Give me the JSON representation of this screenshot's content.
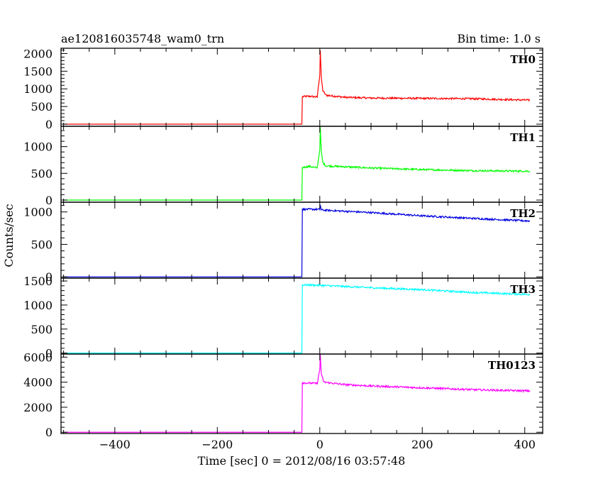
{
  "header": {
    "observation_id": "ae120816035748_wam0_trn",
    "bin_time": "Bin time: 1.0 s"
  },
  "axes": {
    "xlabel": "Time [sec] 0 = 2012/08/16 03:57:48",
    "ylabel": "Counts/sec"
  },
  "chart_data": {
    "type": "line",
    "title": "ae120816035748_wam0_trn",
    "subtitle": "Bin time: 1.0 s",
    "xlabel": "Time [sec] 0 = 2012/08/16 03:57:48",
    "ylabel": "Counts/sec",
    "xlim": [
      -505,
      435
    ],
    "x_ticks": [
      -400,
      -200,
      0,
      200,
      400
    ],
    "x_data_range": [
      -500,
      410
    ],
    "grid": false,
    "legend": "none",
    "panels": [
      {
        "name": "TH0",
        "color": "#ff0000",
        "ylim": [
          -60,
          2150
        ],
        "y_ticks": [
          0,
          500,
          1000,
          1500,
          2000
        ],
        "y_tick_labels": [
          "0",
          "500",
          "1000",
          "1500",
          "2000"
        ],
        "series": [
          {
            "x": -500,
            "y": 0
          },
          {
            "x": -35,
            "y": 0
          },
          {
            "x": -34,
            "y": 780
          },
          {
            "x": -20,
            "y": 790
          },
          {
            "x": -5,
            "y": 770
          },
          {
            "x": 0,
            "y": 1400
          },
          {
            "x": 1,
            "y": 2100
          },
          {
            "x": 3,
            "y": 1300
          },
          {
            "x": 6,
            "y": 950
          },
          {
            "x": 12,
            "y": 820
          },
          {
            "x": 50,
            "y": 760
          },
          {
            "x": 100,
            "y": 740
          },
          {
            "x": 200,
            "y": 730
          },
          {
            "x": 300,
            "y": 720
          },
          {
            "x": 410,
            "y": 680
          }
        ]
      },
      {
        "name": "TH1",
        "color": "#00ff00",
        "ylim": [
          -40,
          1380
        ],
        "y_ticks": [
          0,
          500,
          1000
        ],
        "y_tick_labels": [
          "0",
          "500",
          "1000"
        ],
        "series": [
          {
            "x": -500,
            "y": 0
          },
          {
            "x": -35,
            "y": 0
          },
          {
            "x": -34,
            "y": 610
          },
          {
            "x": -20,
            "y": 630
          },
          {
            "x": -5,
            "y": 600
          },
          {
            "x": 0,
            "y": 950
          },
          {
            "x": 1,
            "y": 1350
          },
          {
            "x": 3,
            "y": 900
          },
          {
            "x": 6,
            "y": 700
          },
          {
            "x": 12,
            "y": 640
          },
          {
            "x": 100,
            "y": 600
          },
          {
            "x": 200,
            "y": 570
          },
          {
            "x": 300,
            "y": 550
          },
          {
            "x": 410,
            "y": 540
          }
        ]
      },
      {
        "name": "TH2",
        "color": "#0000e0",
        "ylim": [
          -20,
          1150
        ],
        "y_ticks": [
          0,
          500,
          1000
        ],
        "y_tick_labels": [
          "0",
          "500",
          "1000"
        ],
        "series": [
          {
            "x": -500,
            "y": 0
          },
          {
            "x": -35,
            "y": 0
          },
          {
            "x": -34,
            "y": 1040
          },
          {
            "x": 0,
            "y": 1040
          },
          {
            "x": 1,
            "y": 1110
          },
          {
            "x": 3,
            "y": 1030
          },
          {
            "x": 50,
            "y": 1010
          },
          {
            "x": 100,
            "y": 990
          },
          {
            "x": 200,
            "y": 940
          },
          {
            "x": 300,
            "y": 900
          },
          {
            "x": 410,
            "y": 860
          }
        ]
      },
      {
        "name": "TH3",
        "color": "#00ffff",
        "ylim": [
          -20,
          1560
        ],
        "y_ticks": [
          0,
          500,
          1000,
          1500
        ],
        "y_tick_labels": [
          "0",
          "500",
          "1000",
          "1500"
        ],
        "series": [
          {
            "x": -500,
            "y": 0
          },
          {
            "x": -35,
            "y": 0
          },
          {
            "x": -34,
            "y": 1420
          },
          {
            "x": 0,
            "y": 1410
          },
          {
            "x": 100,
            "y": 1360
          },
          {
            "x": 200,
            "y": 1320
          },
          {
            "x": 300,
            "y": 1260
          },
          {
            "x": 410,
            "y": 1220
          }
        ]
      },
      {
        "name": "TH0123",
        "color": "#ff00ff",
        "ylim": [
          -100,
          6250
        ],
        "y_ticks": [
          0,
          2000,
          4000,
          6000
        ],
        "y_tick_labels": [
          "0",
          "2000",
          "4000",
          "6000"
        ],
        "series": [
          {
            "x": -500,
            "y": 0
          },
          {
            "x": -35,
            "y": 0
          },
          {
            "x": -34,
            "y": 3950
          },
          {
            "x": -5,
            "y": 3900
          },
          {
            "x": 0,
            "y": 5000
          },
          {
            "x": 1,
            "y": 6200
          },
          {
            "x": 3,
            "y": 4600
          },
          {
            "x": 8,
            "y": 4000
          },
          {
            "x": 50,
            "y": 3800
          },
          {
            "x": 100,
            "y": 3700
          },
          {
            "x": 200,
            "y": 3550
          },
          {
            "x": 300,
            "y": 3400
          },
          {
            "x": 410,
            "y": 3300
          }
        ]
      }
    ]
  }
}
